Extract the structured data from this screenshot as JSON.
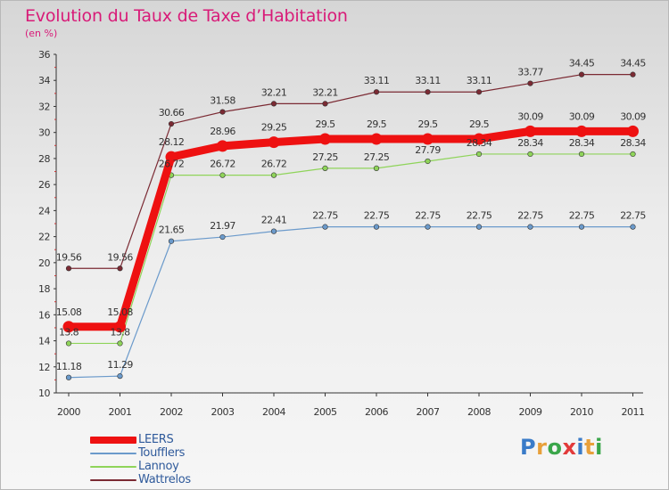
{
  "header": {
    "title": "Evolution du Taux de Taxe d’Habitation",
    "unit": "(en %)"
  },
  "colors": {
    "title": "#d81b78",
    "axis": "#333333",
    "legend_text": "#2f5a9b"
  },
  "chart_data": {
    "type": "line",
    "title": "Evolution du Taux de Taxe d’Habitation",
    "subtitle": "(en %)",
    "x": [
      "2000",
      "2001",
      "2002",
      "2003",
      "2004",
      "2005",
      "2006",
      "2007",
      "2008",
      "2009",
      "2010",
      "2011"
    ],
    "ylim": [
      10,
      36
    ],
    "yticks": [
      "10",
      "12",
      "14",
      "16",
      "18",
      "20",
      "22",
      "24",
      "26",
      "28",
      "30",
      "32",
      "34",
      "36"
    ],
    "grid": false,
    "legend_position": "bottom-left",
    "series": [
      {
        "name": "Wattrelos",
        "color": "#7b2a33",
        "values": [
          19.56,
          19.56,
          30.66,
          31.58,
          32.21,
          32.21,
          33.11,
          33.11,
          33.11,
          33.77,
          34.45,
          34.45
        ],
        "labels": [
          "19.56",
          "19.56",
          "30.66",
          "31.58",
          "32.21",
          "32.21",
          "33.11",
          "33.11",
          "33.11",
          "33.77",
          "34.45",
          "34.45"
        ]
      },
      {
        "name": "Lannoy",
        "color": "#8fd45a",
        "values": [
          13.8,
          13.8,
          26.72,
          26.72,
          26.72,
          27.25,
          27.25,
          27.79,
          28.34,
          28.34,
          28.34,
          28.34
        ],
        "labels": [
          "13.8",
          "13.8",
          "26.72",
          "26.72",
          "26.72",
          "27.25",
          "27.25",
          "27.79",
          "28.34",
          "28.34",
          "28.34",
          "28.34"
        ]
      },
      {
        "name": "Toufflers",
        "color": "#6b9acb",
        "values": [
          11.18,
          11.29,
          21.65,
          21.97,
          22.41,
          22.75,
          22.75,
          22.75,
          22.75,
          22.75,
          22.75,
          22.75
        ],
        "labels": [
          "11.18",
          "11.29",
          "21.65",
          "21.97",
          "22.41",
          "22.75",
          "22.75",
          "22.75",
          "22.75",
          "22.75",
          "22.75",
          "22.75"
        ]
      },
      {
        "name": "LEERS",
        "color": "#ee1111",
        "values": [
          15.08,
          15.08,
          28.12,
          28.96,
          29.25,
          29.5,
          29.5,
          29.5,
          29.5,
          30.09,
          30.09,
          30.09
        ],
        "labels": [
          "15.08",
          "15.08",
          "28.12",
          "28.96",
          "29.25",
          "29.5",
          "29.5",
          "29.5",
          "29.5",
          "30.09",
          "30.09",
          "30.09"
        ]
      }
    ]
  },
  "legend": {
    "items": [
      {
        "label": "LEERS",
        "color": "#ee1111"
      },
      {
        "label": "Toufflers",
        "color": "#6b9acb"
      },
      {
        "label": "Lannoy",
        "color": "#8fd45a"
      },
      {
        "label": "Wattrelos",
        "color": "#7b2a33"
      }
    ]
  },
  "brand": {
    "logo_text": "Proxiti",
    "logo_letters": [
      "P",
      "r",
      "o",
      "x",
      "i",
      "t",
      "i"
    ],
    "logo_colors": [
      "#3a7bc8",
      "#e8a03a",
      "#3aa64a",
      "#e23a3a",
      "#3a7bc8",
      "#e8a03a",
      "#3aa64a"
    ]
  }
}
